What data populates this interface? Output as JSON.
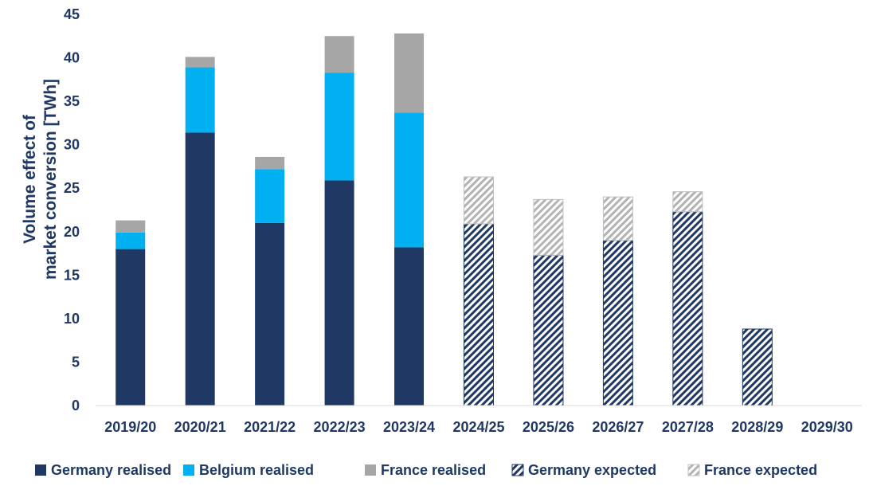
{
  "chart_data": {
    "type": "bar",
    "stacked": true,
    "title": "",
    "ylabel_lines": [
      "Volume effect of",
      "market conversion [TWh]"
    ],
    "xlabel": "",
    "ylim": [
      0,
      45
    ],
    "yticks": [
      "0",
      "5",
      "10",
      "15",
      "20",
      "25",
      "30",
      "35",
      "40",
      "45"
    ],
    "grid": false,
    "legend_position": "bottom",
    "categories": [
      "2019/20",
      "2020/21",
      "2021/22",
      "2022/23",
      "2023/24",
      "2024/25",
      "2025/26",
      "2026/27",
      "2027/28",
      "2028/29",
      "2029/30"
    ],
    "series": [
      {
        "name": "Germany realised",
        "color": "#203864",
        "pattern": "solid",
        "values": [
          18,
          31.4,
          21,
          25.9,
          18.2,
          0,
          0,
          0,
          0,
          0,
          0
        ]
      },
      {
        "name": "Belgium realised",
        "color": "#00b0f0",
        "pattern": "solid",
        "values": [
          1.9,
          7.5,
          6.2,
          12.4,
          15.5,
          0,
          0,
          0,
          0,
          0,
          0
        ]
      },
      {
        "name": "France realised",
        "color": "#a6a6a6",
        "pattern": "solid",
        "values": [
          1.4,
          1.2,
          1.4,
          4.2,
          9.1,
          0,
          0,
          0,
          0,
          0,
          0
        ]
      },
      {
        "name": "Germany expected",
        "color": "#203864",
        "pattern": "hatch",
        "values": [
          0,
          0,
          0,
          0,
          0,
          20.9,
          17.3,
          19,
          22.3,
          8.8,
          0
        ]
      },
      {
        "name": "France expected",
        "color": "#a6a6a6",
        "pattern": "hatch",
        "values": [
          0,
          0,
          0,
          0,
          0,
          5.4,
          6.4,
          5,
          2.3,
          0,
          0
        ]
      }
    ]
  }
}
